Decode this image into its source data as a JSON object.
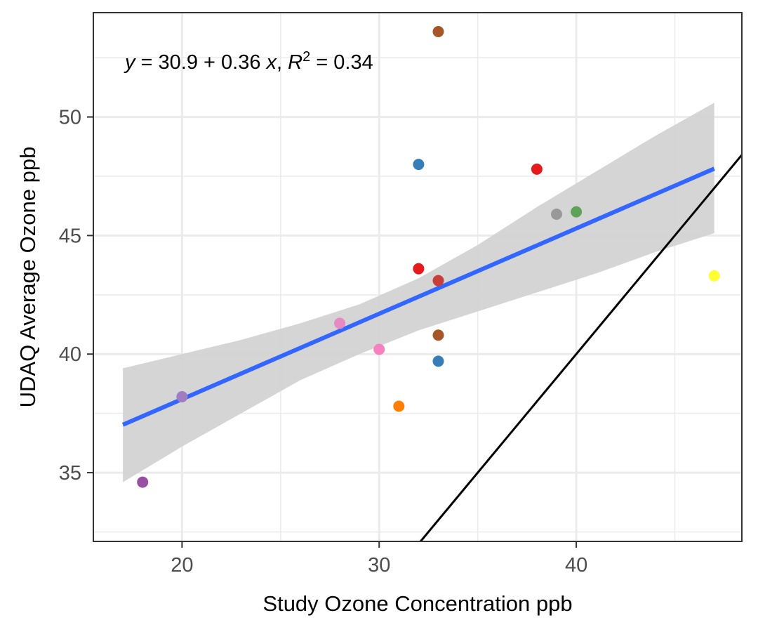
{
  "chart_data": {
    "type": "scatter",
    "xlabel": "Study Ozone Concentration ppb",
    "ylabel": "UDAQ Average Ozone ppb",
    "xlim": [
      15.5,
      48.4
    ],
    "ylim": [
      32.1,
      54.4
    ],
    "x_ticks": [
      20,
      30,
      40
    ],
    "y_ticks": [
      35,
      40,
      45,
      50
    ],
    "grid": true,
    "legend": "none",
    "annotation": {
      "y_var": "y",
      "equation": " = 30.9 + 0.36 ",
      "x_var": "x",
      "sep": ", ",
      "r2_var": "R",
      "r2_exp": "2",
      "r2_value": " = 0.34"
    },
    "points": [
      {
        "x": 18,
        "y": 34.6,
        "color": "#984ea3"
      },
      {
        "x": 20,
        "y": 38.2,
        "color": "#a07cc0"
      },
      {
        "x": 28,
        "y": 41.3,
        "color": "#e78ac3"
      },
      {
        "x": 30,
        "y": 40.2,
        "color": "#f781bf"
      },
      {
        "x": 31,
        "y": 37.8,
        "color": "#ff7f00"
      },
      {
        "x": 32,
        "y": 48.0,
        "color": "#377eb8"
      },
      {
        "x": 32,
        "y": 43.6,
        "color": "#e41a1c"
      },
      {
        "x": 33,
        "y": 53.6,
        "color": "#a65628"
      },
      {
        "x": 33,
        "y": 43.1,
        "color": "#c63f3a"
      },
      {
        "x": 33,
        "y": 40.8,
        "color": "#a65628"
      },
      {
        "x": 33,
        "y": 39.7,
        "color": "#377eb8"
      },
      {
        "x": 38,
        "y": 47.8,
        "color": "#e41a1c"
      },
      {
        "x": 39,
        "y": 45.9,
        "color": "#999999"
      },
      {
        "x": 40,
        "y": 46.0,
        "color": "#5fa35a"
      },
      {
        "x": 47,
        "y": 43.3,
        "color": "#ffff33"
      }
    ],
    "fit": {
      "intercept": 30.9,
      "slope": 0.36,
      "x_range": [
        17,
        47
      ],
      "color": "#3366ff",
      "band_color": "#d3d3d3",
      "band_upper": [
        [
          17,
          39.4
        ],
        [
          20,
          40.0
        ],
        [
          23,
          40.6
        ],
        [
          26,
          41.3
        ],
        [
          29,
          42.1
        ],
        [
          32,
          43.2
        ],
        [
          35,
          44.6
        ],
        [
          38,
          46.2
        ],
        [
          41,
          47.7
        ],
        [
          44,
          49.2
        ],
        [
          47,
          50.6
        ]
      ],
      "band_lower": [
        [
          17,
          34.6
        ],
        [
          20,
          36.1
        ],
        [
          23,
          37.5
        ],
        [
          26,
          38.9
        ],
        [
          29,
          40.0
        ],
        [
          32,
          41.0
        ],
        [
          35,
          41.8
        ],
        [
          38,
          42.6
        ],
        [
          41,
          43.4
        ],
        [
          44,
          44.3
        ],
        [
          47,
          45.1
        ]
      ]
    },
    "reference_line": {
      "slope": 1,
      "intercept": 0,
      "color": "#000000"
    }
  }
}
